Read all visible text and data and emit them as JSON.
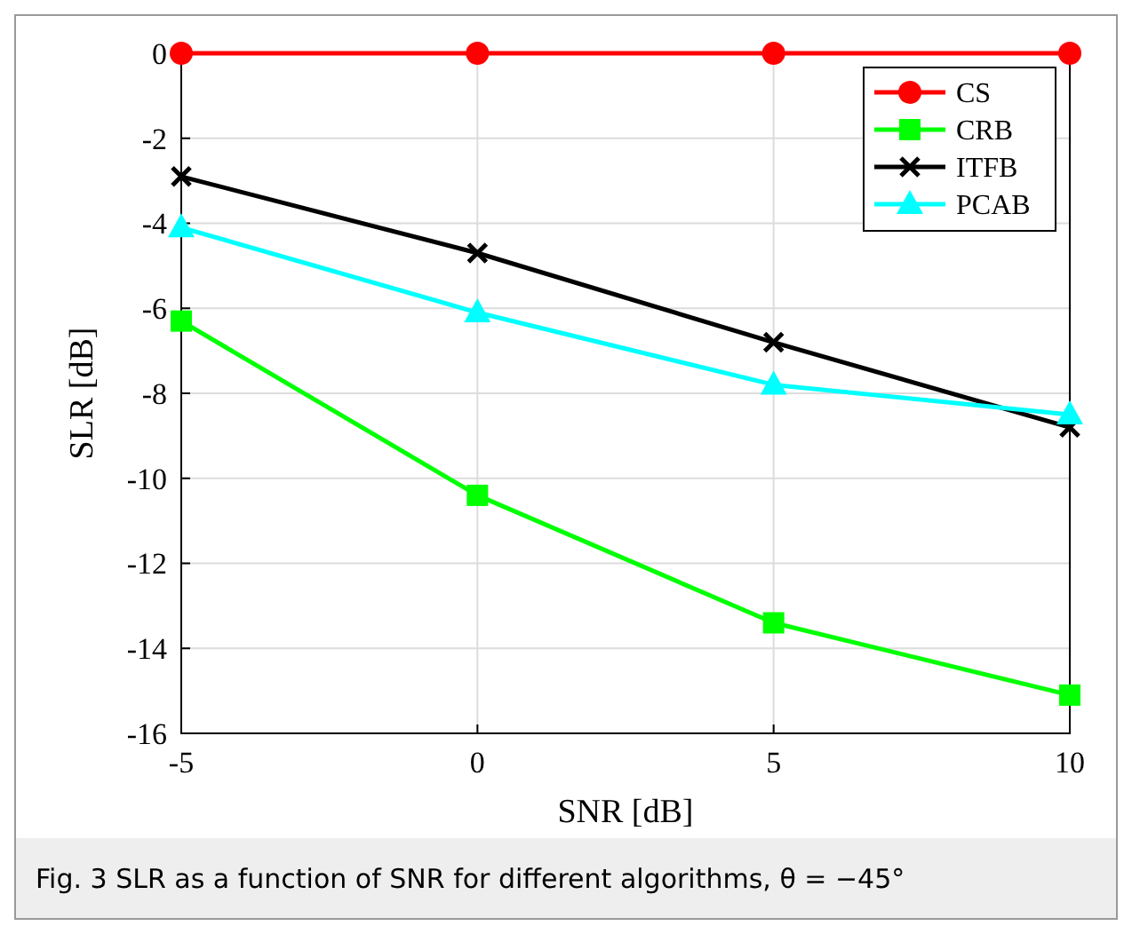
{
  "chart_data": {
    "type": "line",
    "xlabel": "SNR [dB]",
    "ylabel": "SLR [dB]",
    "x": [
      -5,
      0,
      5,
      10
    ],
    "series": [
      {
        "name": "CS",
        "color": "#ff0000",
        "marker": "circle",
        "values": [
          0,
          0,
          0,
          0
        ]
      },
      {
        "name": "CRB",
        "color": "#00ff00",
        "marker": "square",
        "values": [
          -6.3,
          -10.4,
          -13.4,
          -15.1
        ]
      },
      {
        "name": "ITFB",
        "color": "#000000",
        "marker": "cross",
        "values": [
          -2.9,
          -4.7,
          -6.8,
          -8.8
        ]
      },
      {
        "name": "PCAB",
        "color": "#00ffff",
        "marker": "triangle",
        "values": [
          -4.1,
          -6.1,
          -7.8,
          -8.5
        ]
      }
    ],
    "xlim": [
      -5,
      10
    ],
    "xticks": [
      -5,
      0,
      5,
      10
    ],
    "ylim": [
      -16,
      0
    ],
    "yticks": [
      -16,
      -14,
      -12,
      -10,
      -8,
      -6,
      -4,
      -2,
      0
    ],
    "grid": true,
    "legend": "top right",
    "line_style": "solid",
    "annotations": [
      "Fig. 3 SLR as a function of SNR for different algorithms, θ = −45°"
    ]
  }
}
